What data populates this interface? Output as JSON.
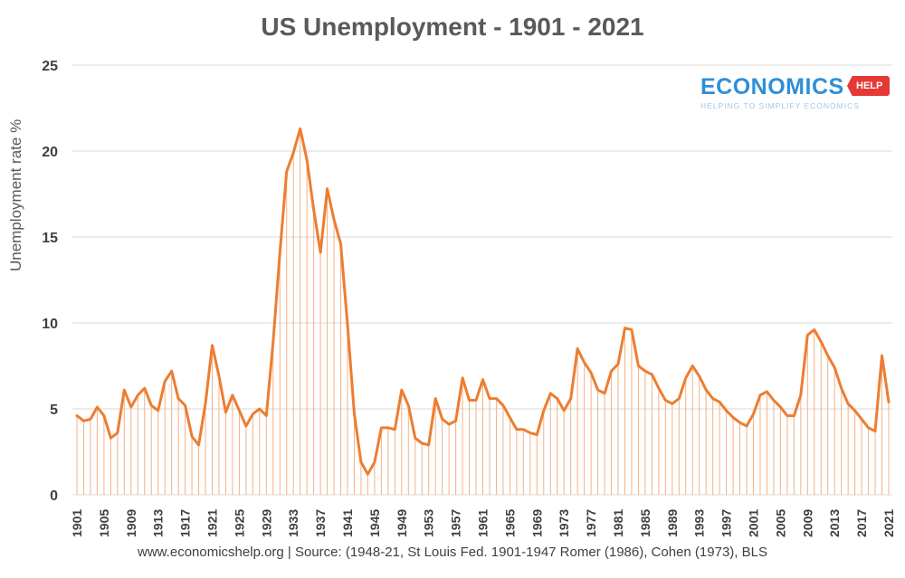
{
  "chart_data": {
    "type": "line",
    "title": "US Unemployment - 1901 - 2021",
    "ylabel": "Unemployment rate %",
    "xlabel": "",
    "ylim": [
      0,
      25
    ],
    "yticks": [
      0,
      5,
      10,
      15,
      20,
      25
    ],
    "xtick_labels": [
      "1901",
      "1905",
      "1909",
      "1913",
      "1917",
      "1921",
      "1925",
      "1929",
      "1933",
      "1937",
      "1941",
      "1945",
      "1949",
      "1953",
      "1957",
      "1961",
      "1965",
      "1969",
      "1973",
      "1977",
      "1981",
      "1985",
      "1989",
      "1993",
      "1997",
      "2001",
      "2005",
      "2009",
      "2013",
      "2017",
      "2021"
    ],
    "grid": "horizontal",
    "drop_lines": true,
    "line_color": "#ED7D31",
    "drop_line_color": "#F4B183",
    "x_start": 1901,
    "x_end": 2021,
    "source": "www.economicshelp.org  | Source: (1948-21, St Louis Fed. 1901-1947 Romer (1986), Cohen (1973), BLS",
    "series": [
      {
        "values": [
          4.6,
          4.3,
          4.4,
          5.1,
          4.6,
          3.3,
          3.6,
          6.1,
          5.1,
          5.8,
          6.2,
          5.2,
          4.9,
          6.6,
          7.2,
          5.6,
          5.2,
          3.4,
          2.9,
          5.3,
          8.7,
          6.9,
          4.8,
          5.8,
          4.9,
          4.0,
          4.7,
          5.0,
          4.6,
          8.9,
          14.1,
          18.8,
          19.9,
          21.3,
          19.5,
          16.6,
          14.1,
          17.8,
          16.0,
          14.6,
          9.9,
          4.7,
          1.9,
          1.2,
          1.9,
          3.9,
          3.9,
          3.8,
          6.1,
          5.2,
          3.3,
          3.0,
          2.9,
          5.6,
          4.4,
          4.1,
          4.3,
          6.8,
          5.5,
          5.5,
          6.7,
          5.6,
          5.6,
          5.2,
          4.5,
          3.8,
          3.8,
          3.6,
          3.5,
          4.9,
          5.9,
          5.6,
          4.9,
          5.6,
          8.5,
          7.7,
          7.1,
          6.1,
          5.9,
          7.2,
          7.6,
          9.7,
          9.6,
          7.5,
          7.2,
          7.0,
          6.2,
          5.5,
          5.3,
          5.6,
          6.8,
          7.5,
          6.9,
          6.1,
          5.6,
          5.4,
          4.9,
          4.5,
          4.2,
          4.0,
          4.7,
          5.8,
          6.0,
          5.5,
          5.1,
          4.6,
          4.6,
          5.8,
          9.3,
          9.6,
          8.9,
          8.1,
          7.4,
          6.2,
          5.3,
          4.9,
          4.4,
          3.9,
          3.7,
          8.1,
          5.4
        ]
      }
    ]
  },
  "branding": {
    "logo_word": "ECONOMICS",
    "logo_tag": "HELP",
    "logo_sub": "HELPING TO SIMPLIFY ECONOMICS",
    "brand_blue": "#2f8fd6",
    "brand_red": "#e53935"
  }
}
